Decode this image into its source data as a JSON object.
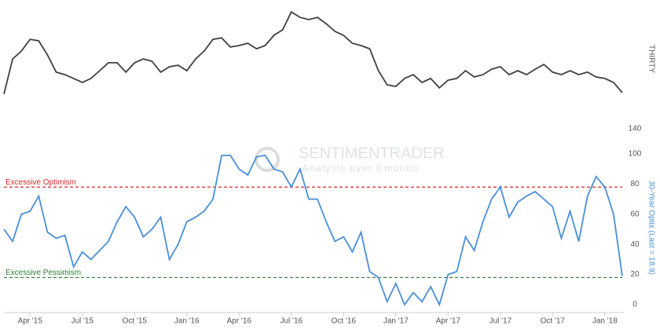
{
  "chart_data": [
    {
      "type": "line",
      "ylabel": "THIRTY",
      "color": "#404040",
      "ylim": [
        138,
        190
      ],
      "yticks": [
        140
      ],
      "values": [
        153.8,
        167.9,
        171.1,
        175.8,
        175.2,
        169.5,
        162.6,
        161.6,
        160.1,
        158.5,
        160.1,
        163.2,
        166.4,
        166.4,
        162.6,
        166.4,
        167.9,
        167.0,
        162.6,
        164.8,
        165.4,
        163.2,
        167.9,
        171.1,
        175.8,
        176.4,
        172.7,
        173.3,
        174.2,
        172.0,
        173.3,
        177.4,
        179.6,
        186.8,
        184.6,
        183.7,
        184.6,
        182.1,
        179.0,
        177.4,
        174.2,
        173.3,
        172.0,
        163.2,
        157.5,
        156.9,
        160.1,
        161.6,
        158.5,
        160.1,
        156.3,
        159.4,
        160.1,
        163.2,
        160.7,
        161.6,
        163.8,
        164.8,
        161.6,
        163.2,
        161.6,
        163.8,
        165.7,
        162.6,
        161.6,
        163.2,
        161.6,
        162.6,
        160.7,
        160.1,
        158.5,
        154.4
      ]
    },
    {
      "type": "line",
      "ylabel": "30-Year Optix (Last = 18.9)",
      "color": "#4a8fd8",
      "ylim": [
        0,
        100
      ],
      "yticks": [
        0,
        20,
        40,
        60,
        80,
        100
      ],
      "watermark": {
        "title": "SENTIMENTRADER",
        "subtitle": "Analysis over Emotion"
      },
      "reference_lines": [
        {
          "label": "Excessive Optimism",
          "value": 78,
          "color": "#d62728"
        },
        {
          "label": "Excessive Pessimism",
          "value": 18,
          "color": "#2e7d32"
        }
      ],
      "categories": [
        null,
        null,
        null,
        "Apr '15",
        null,
        null,
        null,
        null,
        null,
        "Jul '15",
        null,
        null,
        null,
        null,
        null,
        "Oct '15",
        null,
        null,
        null,
        null,
        null,
        "Jan '16",
        null,
        null,
        null,
        null,
        null,
        "Apr '16",
        null,
        null,
        null,
        null,
        null,
        "Jul '16",
        null,
        null,
        null,
        null,
        null,
        "Oct '16",
        null,
        null,
        null,
        null,
        null,
        "Jan '17",
        null,
        null,
        null,
        null,
        null,
        "Apr '17",
        null,
        null,
        null,
        null,
        null,
        "Jul '17",
        null,
        null,
        null,
        null,
        null,
        "Oct '17",
        null,
        null,
        null,
        null,
        null,
        "Jan '18",
        null,
        null
      ],
      "values": [
        50,
        42,
        60,
        62,
        72,
        48,
        44,
        46,
        25,
        35,
        30,
        36,
        42,
        55,
        65,
        58,
        45,
        50,
        58,
        30,
        40,
        55,
        58,
        62,
        70,
        99,
        99,
        90,
        86,
        98,
        99,
        90,
        88,
        78,
        90,
        70,
        70,
        55,
        42,
        45,
        35,
        48,
        22,
        18,
        2,
        14,
        0,
        8,
        2,
        12,
        0,
        20,
        22,
        45,
        36,
        55,
        70,
        78,
        58,
        68,
        72,
        75,
        70,
        65,
        44,
        62,
        42,
        72,
        85,
        78,
        60,
        18.9
      ]
    }
  ]
}
